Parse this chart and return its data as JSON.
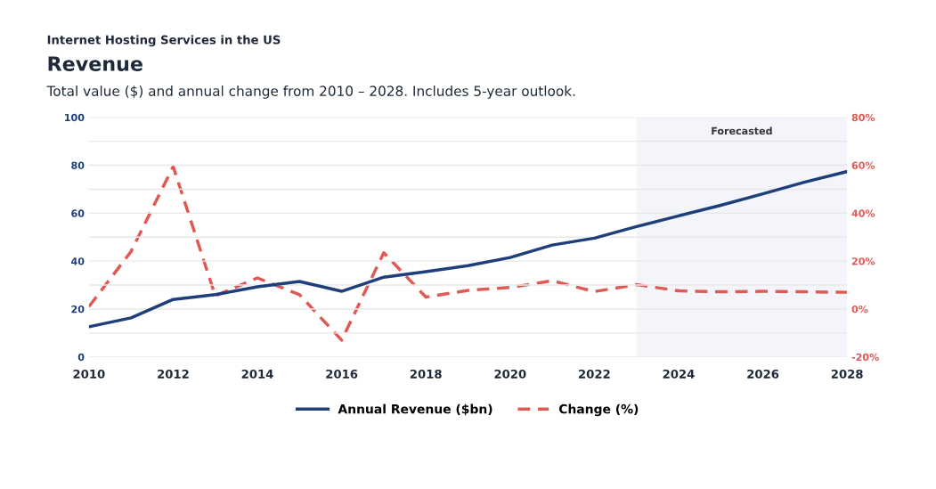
{
  "chart_data": {
    "type": "line",
    "subtitle": "Internet Hosting Services in the US",
    "title": "Revenue",
    "annotations": [
      "Total value ($) and annual change from 2010 – 2028. Includes 5-year outlook."
    ],
    "x": [
      2010,
      2011,
      2012,
      2013,
      2014,
      2015,
      2016,
      2017,
      2018,
      2019,
      2020,
      2021,
      2022,
      2023,
      2024,
      2025,
      2026,
      2027,
      2028
    ],
    "series": [
      {
        "name": "Annual Revenue ($bn)",
        "color": "#1f3f7a",
        "line_style": "solid",
        "values": [
          12.6,
          16.3,
          24,
          26,
          29.3,
          31.5,
          27.4,
          33.3,
          35.6,
          38.1,
          41.5,
          46.7,
          49.6,
          54.4,
          58.9,
          63.3,
          68.1,
          73,
          77.4
        ]
      },
      {
        "name": "Change (%)",
        "color": "#e05a55",
        "line_style": "dashed",
        "axis": "y2",
        "values": [
          1,
          24,
          59.5,
          5.5,
          13,
          6,
          -13,
          23.5,
          5,
          7.8,
          9,
          11.8,
          7.3,
          10.2,
          7.6,
          7.2,
          7.4,
          7.2,
          7
        ]
      }
    ],
    "xlim": [
      2010,
      2028
    ],
    "xticks": [
      2010,
      2012,
      2014,
      2016,
      2018,
      2020,
      2022,
      2024,
      2026,
      2028
    ],
    "ylim": [
      0,
      100
    ],
    "yticks": [
      0,
      {
        "value": 10,
        "label": null
      },
      20,
      {
        "value": 30,
        "label": null
      },
      40,
      {
        "value": 50,
        "label": null
      },
      60,
      {
        "value": 70,
        "label": null
      },
      80,
      {
        "value": 90,
        "label": null
      },
      100
    ],
    "y2lim": [
      -20,
      80
    ],
    "y2ticks": [
      {
        "value": -20,
        "label": "-20%"
      },
      {
        "value": 0,
        "label": "0%"
      },
      {
        "value": 20,
        "label": "20%"
      },
      {
        "value": 40,
        "label": "40%"
      },
      {
        "value": 60,
        "label": "60%"
      },
      {
        "value": 80,
        "label": "80%"
      }
    ],
    "bands": [
      {
        "axis": "x",
        "from": 2023,
        "to": 2028,
        "label": "Forecasted",
        "color": "#f3f5fa"
      }
    ],
    "grid": "y",
    "legend": "bottom",
    "marker": "none"
  }
}
